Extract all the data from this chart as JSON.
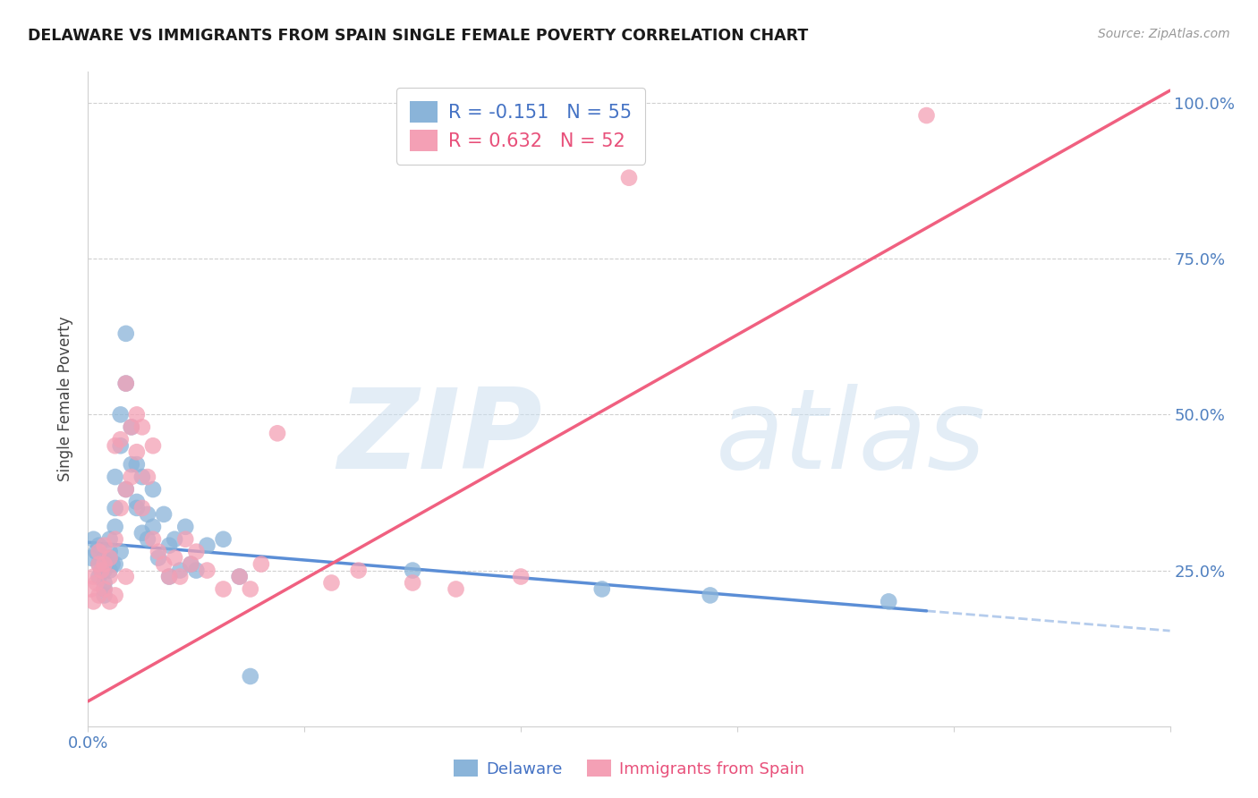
{
  "title": "DELAWARE VS IMMIGRANTS FROM SPAIN SINGLE FEMALE POVERTY CORRELATION CHART",
  "source": "Source: ZipAtlas.com",
  "ylabel": "Single Female Poverty",
  "x_min": 0.0,
  "x_max": 0.2,
  "y_min": 0.0,
  "y_max": 1.05,
  "y_ticks": [
    0.0,
    0.25,
    0.5,
    0.75,
    1.0
  ],
  "y_tick_labels": [
    "",
    "25.0%",
    "50.0%",
    "75.0%",
    "100.0%"
  ],
  "x_ticks": [
    0.0,
    0.04,
    0.08,
    0.12,
    0.16,
    0.2
  ],
  "r_delaware": -0.151,
  "n_delaware": 55,
  "r_spain": 0.632,
  "n_spain": 52,
  "delaware_color": "#8ab4d9",
  "spain_color": "#f4a0b5",
  "delaware_line_color": "#5b8ed6",
  "spain_line_color": "#f06080",
  "watermark_zip": "ZIP",
  "watermark_atlas": "atlas",
  "del_line_x0": 0.0,
  "del_line_y0": 0.295,
  "del_line_x1": 0.155,
  "del_line_y1": 0.185,
  "sp_line_x0": 0.0,
  "sp_line_y0": 0.04,
  "sp_line_x1": 0.2,
  "sp_line_y1": 1.02,
  "del_x": [
    0.0005,
    0.001,
    0.0015,
    0.002,
    0.002,
    0.002,
    0.0025,
    0.003,
    0.003,
    0.003,
    0.003,
    0.003,
    0.004,
    0.004,
    0.004,
    0.004,
    0.0045,
    0.005,
    0.005,
    0.005,
    0.005,
    0.006,
    0.006,
    0.006,
    0.007,
    0.007,
    0.007,
    0.008,
    0.008,
    0.009,
    0.009,
    0.009,
    0.01,
    0.01,
    0.011,
    0.011,
    0.012,
    0.012,
    0.013,
    0.014,
    0.015,
    0.015,
    0.016,
    0.017,
    0.018,
    0.019,
    0.02,
    0.022,
    0.025,
    0.028,
    0.03,
    0.06,
    0.095,
    0.115,
    0.148
  ],
  "del_y": [
    0.27,
    0.3,
    0.28,
    0.24,
    0.26,
    0.29,
    0.25,
    0.23,
    0.25,
    0.27,
    0.21,
    0.22,
    0.27,
    0.3,
    0.25,
    0.28,
    0.26,
    0.32,
    0.35,
    0.4,
    0.26,
    0.45,
    0.5,
    0.28,
    0.63,
    0.55,
    0.38,
    0.42,
    0.48,
    0.35,
    0.42,
    0.36,
    0.31,
    0.4,
    0.3,
    0.34,
    0.32,
    0.38,
    0.27,
    0.34,
    0.29,
    0.24,
    0.3,
    0.25,
    0.32,
    0.26,
    0.25,
    0.29,
    0.3,
    0.24,
    0.08,
    0.25,
    0.22,
    0.21,
    0.2
  ],
  "sp_x": [
    0.0005,
    0.001,
    0.001,
    0.0015,
    0.002,
    0.002,
    0.002,
    0.0025,
    0.003,
    0.003,
    0.003,
    0.004,
    0.004,
    0.004,
    0.005,
    0.005,
    0.005,
    0.006,
    0.006,
    0.007,
    0.007,
    0.007,
    0.008,
    0.008,
    0.009,
    0.009,
    0.01,
    0.01,
    0.011,
    0.012,
    0.012,
    0.013,
    0.014,
    0.015,
    0.016,
    0.017,
    0.018,
    0.019,
    0.02,
    0.022,
    0.025,
    0.028,
    0.03,
    0.032,
    0.035,
    0.045,
    0.05,
    0.06,
    0.068,
    0.08,
    0.1,
    0.155
  ],
  "sp_y": [
    0.22,
    0.2,
    0.24,
    0.23,
    0.21,
    0.26,
    0.28,
    0.25,
    0.22,
    0.26,
    0.29,
    0.2,
    0.24,
    0.27,
    0.3,
    0.45,
    0.21,
    0.35,
    0.46,
    0.55,
    0.38,
    0.24,
    0.4,
    0.48,
    0.44,
    0.5,
    0.35,
    0.48,
    0.4,
    0.45,
    0.3,
    0.28,
    0.26,
    0.24,
    0.27,
    0.24,
    0.3,
    0.26,
    0.28,
    0.25,
    0.22,
    0.24,
    0.22,
    0.26,
    0.47,
    0.23,
    0.25,
    0.23,
    0.22,
    0.24,
    0.88,
    0.98
  ]
}
